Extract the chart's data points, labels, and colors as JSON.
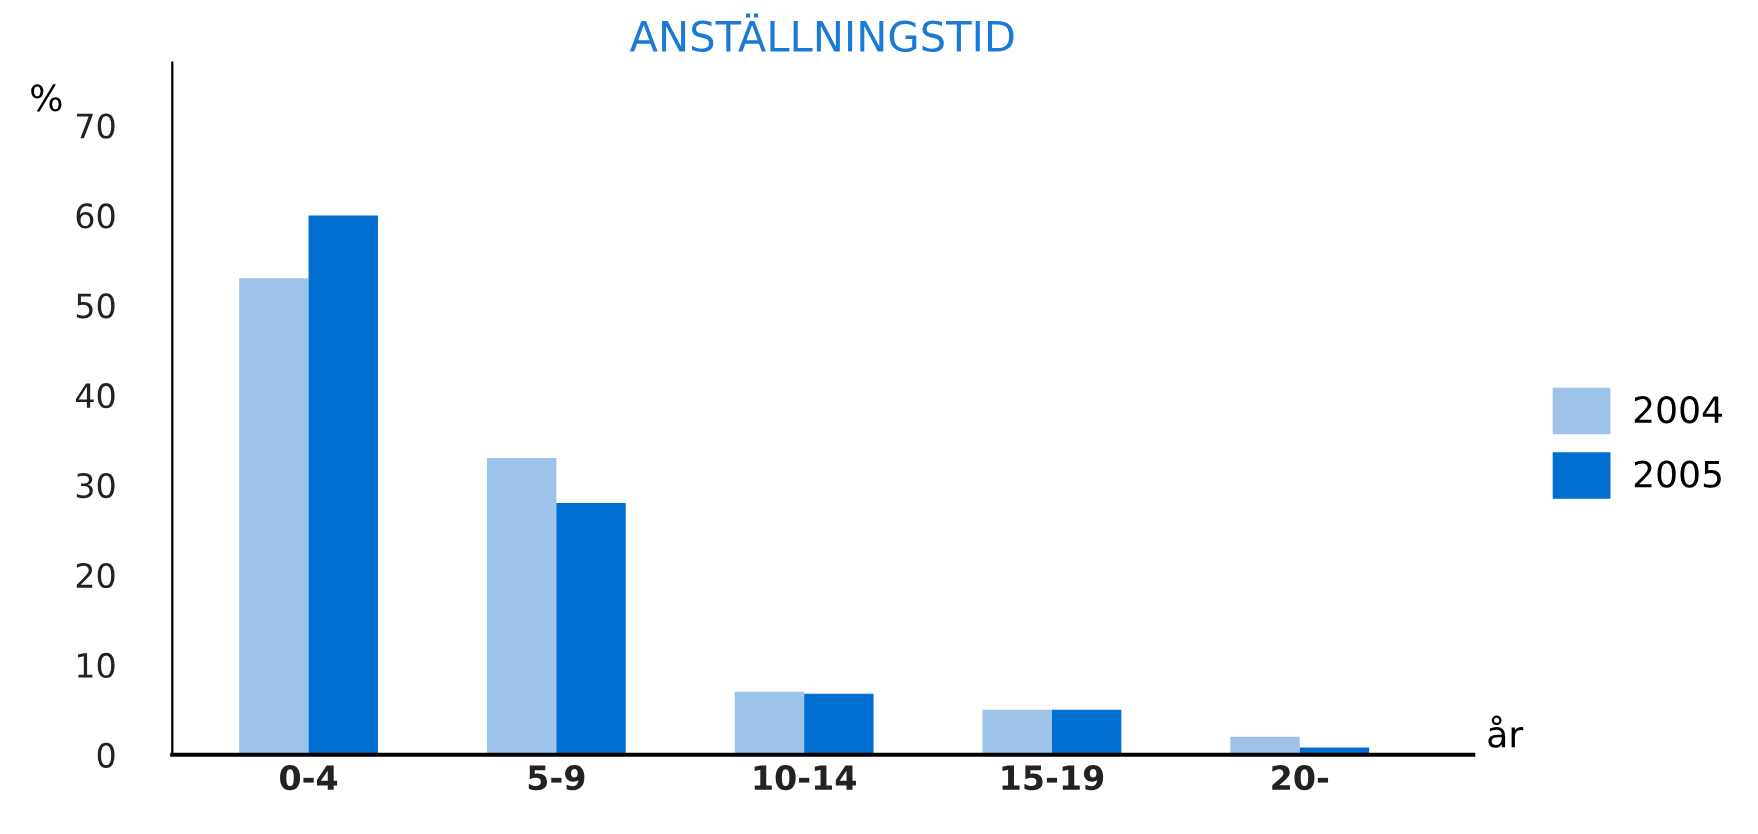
{
  "chart_data": {
    "type": "bar",
    "title": "ANSTÄLLNINGSTID",
    "ylabel": "%",
    "xlabel": "år",
    "categories": [
      "0-4",
      "5-9",
      "10-14",
      "15-19",
      "20-"
    ],
    "series": [
      {
        "name": "2004",
        "color": "#9dc3ea",
        "values": [
          53,
          33,
          7,
          5,
          2
        ]
      },
      {
        "name": "2005",
        "color": "#006fd1",
        "values": [
          60,
          28,
          6.8,
          5,
          0.8
        ]
      }
    ],
    "ylim": [
      0,
      77
    ],
    "yticks": [
      0,
      10,
      20,
      30,
      40,
      50,
      60,
      70
    ],
    "grid": false,
    "legend": "right"
  }
}
